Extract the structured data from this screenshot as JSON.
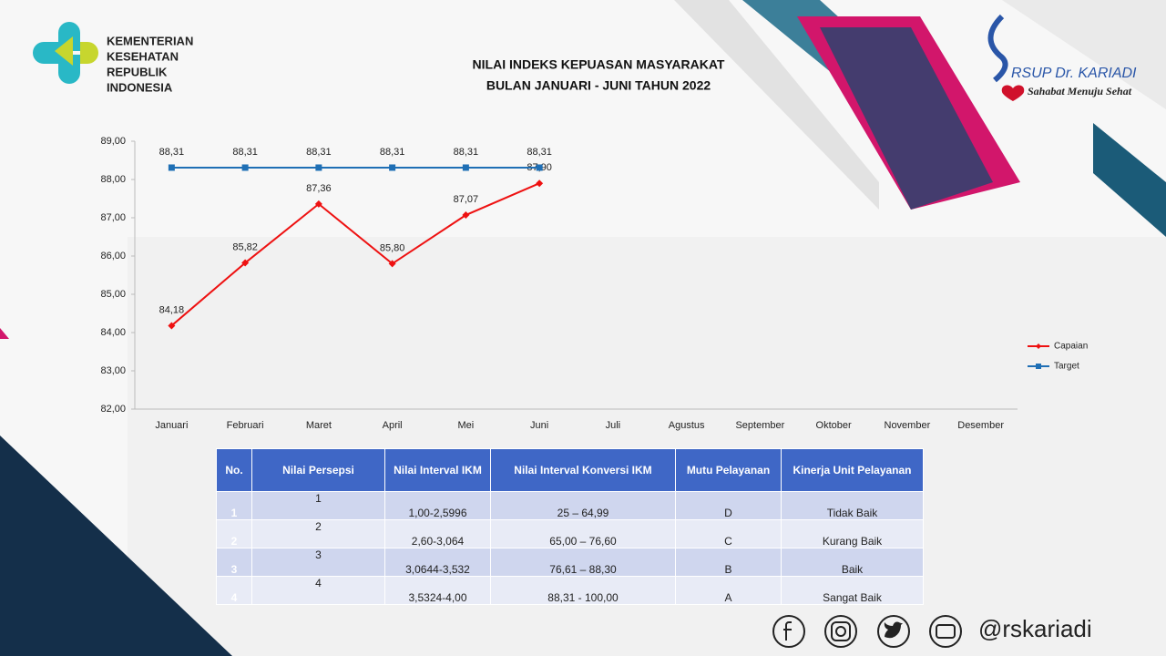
{
  "header": {
    "ministry": [
      "KEMENTERIAN",
      "KESEHATAN",
      "REPUBLIK",
      "INDONESIA"
    ],
    "hospital": "RSUP Dr. KARIADI",
    "tagline": "Sahabat Menuju Sehat"
  },
  "chart_data": {
    "type": "line",
    "title": "NILAI INDEKS KEPUASAN MASYARAKAT",
    "subtitle": "BULAN JANUARI - JUNI TAHUN 2022",
    "categories": [
      "Januari",
      "Februari",
      "Maret",
      "April",
      "Mei",
      "Juni",
      "Juli",
      "Agustus",
      "September",
      "Oktober",
      "November",
      "Desember"
    ],
    "series": [
      {
        "name": "Capaian",
        "color": "#ee1111",
        "marker": "diamond",
        "values": [
          84.18,
          85.82,
          87.36,
          85.8,
          87.07,
          87.9,
          null,
          null,
          null,
          null,
          null,
          null
        ],
        "value_labels": [
          "84,18",
          "85,82",
          "87,36",
          "85,80",
          "87,07",
          "87,90",
          null,
          null,
          null,
          null,
          null,
          null
        ]
      },
      {
        "name": "Target",
        "color": "#1f6fb5",
        "marker": "square",
        "values": [
          88.31,
          88.31,
          88.31,
          88.31,
          88.31,
          88.31,
          null,
          null,
          null,
          null,
          null,
          null
        ],
        "value_labels": [
          "88,31",
          "88,31",
          "88,31",
          "88,31",
          "88,31",
          "88,31",
          null,
          null,
          null,
          null,
          null,
          null
        ]
      }
    ],
    "ylim": [
      82,
      89
    ],
    "yticks": [
      {
        "value": 82,
        "label": "82,00"
      },
      {
        "value": 83,
        "label": "83,00"
      },
      {
        "value": 84,
        "label": "84,00"
      },
      {
        "value": 85,
        "label": "85,00"
      },
      {
        "value": 86,
        "label": "86,00"
      },
      {
        "value": 87,
        "label": "87,00"
      },
      {
        "value": 88,
        "label": "88,00"
      },
      {
        "value": 89,
        "label": "89,00"
      }
    ],
    "legend": "right"
  },
  "table": {
    "columns": [
      "No.",
      "Nilai Persepsi",
      "Nilai Interval IKM",
      "Nilai Interval Konversi IKM",
      "Mutu Pelayanan",
      "Kinerja Unit Pelayanan"
    ],
    "rows": [
      [
        "1",
        "1",
        "1,00-2,5996",
        "25 – 64,99",
        "D",
        "Tidak Baik"
      ],
      [
        "2",
        "2",
        "2,60-3,064",
        "65,00 – 76,60",
        "C",
        "Kurang Baik"
      ],
      [
        "3",
        "3",
        "3,0644-3,532",
        "76,61 – 88,30",
        "B",
        "Baik"
      ],
      [
        "4",
        "4",
        "3,5324-4,00",
        "88,31 - 100,00",
        "A",
        "Sangat Baik"
      ]
    ]
  },
  "footer": {
    "handle": "@rskariadi"
  }
}
